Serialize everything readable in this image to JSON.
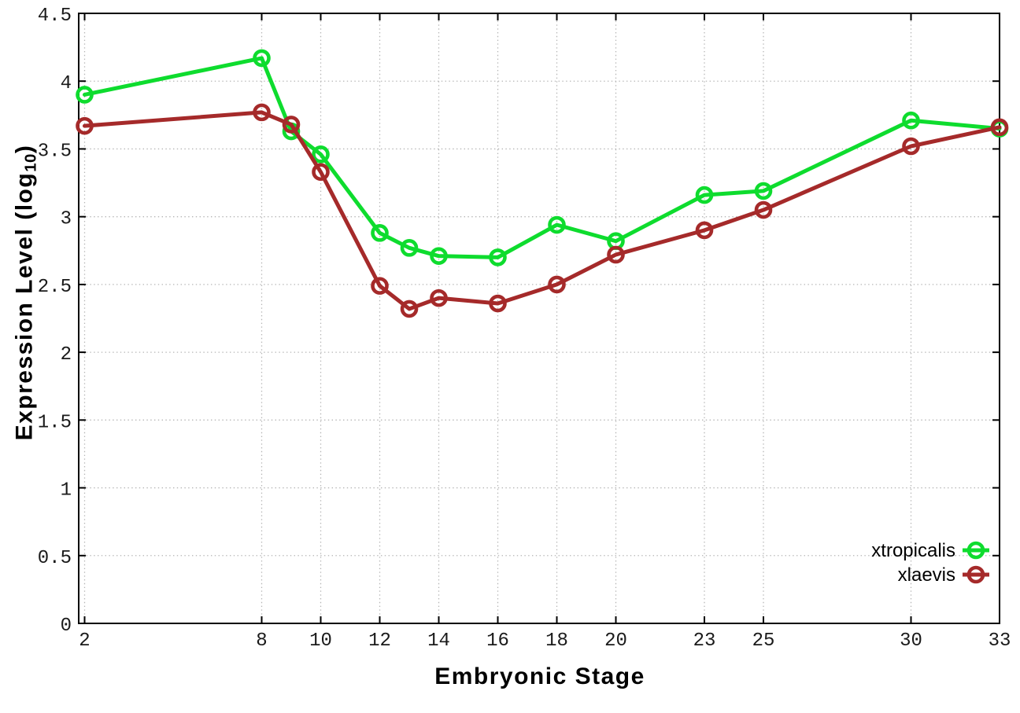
{
  "chart_data": {
    "type": "line",
    "title": "",
    "xlabel": "Embryonic Stage",
    "ylabel": "Expression Level (log10)",
    "ylabel_prefix": "Expression Level (log",
    "ylabel_sub": "10",
    "ylabel_suffix": ")",
    "x": [
      2,
      8,
      9,
      10,
      12,
      13,
      14,
      16,
      18,
      20,
      23,
      25,
      30,
      33
    ],
    "series": [
      {
        "name": "xtropicalis",
        "color": "#0edc2e",
        "marker": "open-circle",
        "values": [
          3.9,
          4.17,
          3.63,
          3.46,
          2.88,
          2.77,
          2.71,
          2.7,
          2.94,
          2.82,
          3.16,
          3.19,
          3.71,
          3.65
        ]
      },
      {
        "name": "xlaevis",
        "color": "#a52a2a",
        "marker": "open-circle",
        "values": [
          3.67,
          3.77,
          3.68,
          3.33,
          2.49,
          2.32,
          2.4,
          2.36,
          2.5,
          2.72,
          2.9,
          3.05,
          3.52,
          3.66
        ]
      }
    ],
    "xticks": {
      "values": [
        2,
        8,
        10,
        12,
        14,
        16,
        18,
        20,
        23,
        25,
        30,
        33
      ],
      "labels": [
        "2",
        "8",
        "10",
        "12",
        "14",
        "16",
        "18",
        "20",
        "23",
        "25",
        "30",
        "33"
      ]
    },
    "yticks": {
      "values": [
        0,
        0.5,
        1,
        1.5,
        2,
        2.5,
        3,
        3.5,
        4,
        4.5
      ],
      "labels": [
        "0",
        "0.5",
        "1",
        "1.5",
        "2",
        "2.5",
        "3",
        "3.5",
        "4",
        "4.5"
      ]
    },
    "xlim": [
      1.8,
      33
    ],
    "ylim": [
      0,
      4.5
    ],
    "grid": true,
    "grid_style": "dotted",
    "grid_color": "#b5b5b5",
    "border_color": "#000000",
    "tick_label_color": "#1a1a1a",
    "background": "#ffffff",
    "legend_position": "bottom-right"
  }
}
